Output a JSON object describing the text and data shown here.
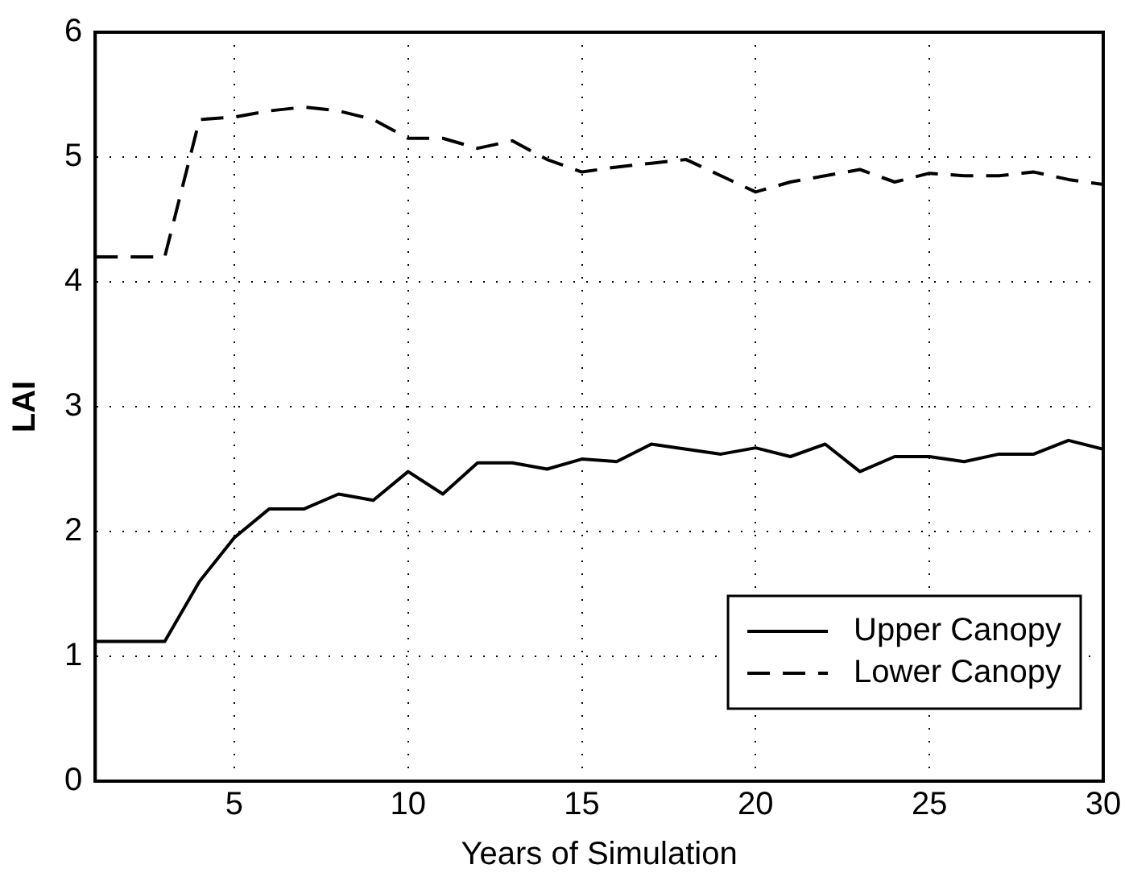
{
  "chart_data": {
    "type": "line",
    "xlabel": "Years of Simulation",
    "ylabel": "LAI",
    "x": [
      1,
      2,
      3,
      4,
      5,
      6,
      7,
      8,
      9,
      10,
      11,
      12,
      13,
      14,
      15,
      16,
      17,
      18,
      19,
      20,
      21,
      22,
      23,
      24,
      25,
      26,
      27,
      28,
      29,
      30
    ],
    "series": [
      {
        "name": "Upper Canopy",
        "color": "#000000",
        "line_style": "solid",
        "values": [
          1.12,
          1.12,
          1.12,
          1.6,
          1.95,
          2.18,
          2.18,
          2.3,
          2.25,
          2.48,
          2.3,
          2.55,
          2.55,
          2.5,
          2.58,
          2.56,
          2.7,
          2.66,
          2.62,
          2.67,
          2.6,
          2.7,
          2.48,
          2.6,
          2.6,
          2.56,
          2.62,
          2.62,
          2.73,
          2.66
        ]
      },
      {
        "name": "Lower Canopy",
        "color": "#000000",
        "line_style": "dashed",
        "values": [
          4.2,
          4.2,
          4.2,
          5.3,
          5.32,
          5.37,
          5.4,
          5.37,
          5.3,
          5.15,
          5.15,
          5.07,
          5.13,
          4.98,
          4.88,
          4.92,
          4.95,
          4.98,
          4.85,
          4.72,
          4.8,
          4.85,
          4.9,
          4.8,
          4.87,
          4.85,
          4.85,
          4.88,
          4.82,
          4.78
        ]
      }
    ],
    "xlim": [
      1,
      30
    ],
    "xticks": [
      5,
      10,
      15,
      20,
      25,
      30
    ],
    "ylim": [
      0,
      6
    ],
    "yticks": [
      0,
      1,
      2,
      3,
      4,
      5,
      6
    ],
    "grid": true,
    "legend": "bottom right",
    "marker": "none"
  }
}
